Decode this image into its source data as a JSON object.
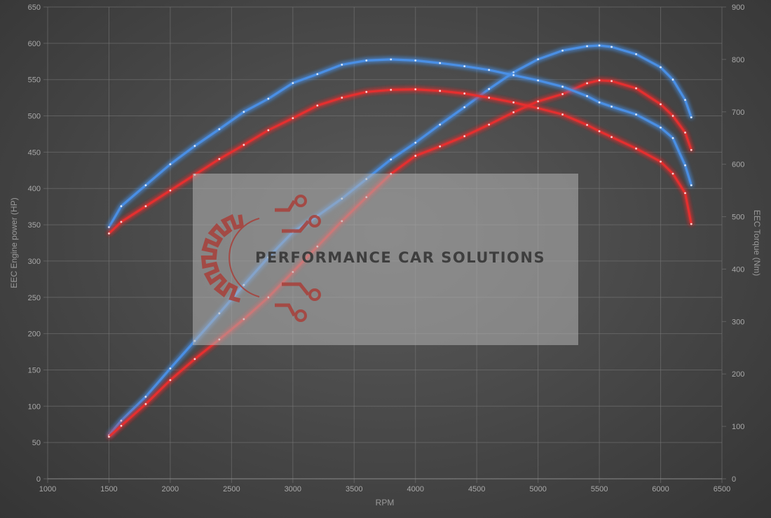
{
  "watermark": {
    "text": "PERFORMANCE CAR SOLUTIONS",
    "logo_icon": "gear-circuit-logo-icon",
    "logo_color": "#a8403a"
  },
  "chart_data": {
    "type": "line",
    "xlabel": "RPM",
    "ylabel": "EEC Engine power (HP)",
    "y2label": "EEC Torque (Nm)",
    "xlim": [
      1000,
      6500
    ],
    "ylim": [
      0,
      650
    ],
    "y2lim": [
      0,
      900
    ],
    "x_ticks": [
      "1000",
      "1500",
      "2000",
      "2500",
      "3000",
      "3500",
      "4000",
      "4500",
      "5000",
      "5500",
      "6000",
      "6500"
    ],
    "y_ticks": [
      "0",
      "50",
      "100",
      "150",
      "200",
      "250",
      "300",
      "350",
      "400",
      "450",
      "500",
      "550",
      "600",
      "650"
    ],
    "y2_ticks": [
      "0",
      "100",
      "200",
      "300",
      "400",
      "500",
      "600",
      "700",
      "800",
      "900"
    ],
    "grid": true,
    "series": [
      {
        "color": "#4a90e8",
        "axis": "left",
        "points": [
          [
            1500,
            60
          ],
          [
            1600,
            80
          ],
          [
            1800,
            113
          ],
          [
            2000,
            152
          ],
          [
            2200,
            190
          ],
          [
            2400,
            228
          ],
          [
            2600,
            267
          ],
          [
            2800,
            305
          ],
          [
            3000,
            340
          ],
          [
            3200,
            362
          ],
          [
            3400,
            386
          ],
          [
            3600,
            413
          ],
          [
            3800,
            440
          ],
          [
            4000,
            463
          ],
          [
            4200,
            488
          ],
          [
            4400,
            512
          ],
          [
            4600,
            537
          ],
          [
            4800,
            560
          ],
          [
            5000,
            578
          ],
          [
            5200,
            590
          ],
          [
            5400,
            596
          ],
          [
            5500,
            597
          ],
          [
            5600,
            595
          ],
          [
            5800,
            585
          ],
          [
            6000,
            567
          ],
          [
            6100,
            550
          ],
          [
            6200,
            522
          ],
          [
            6250,
            498
          ]
        ]
      },
      {
        "color": "#e83030",
        "axis": "left",
        "points": [
          [
            1500,
            58
          ],
          [
            1600,
            73
          ],
          [
            1800,
            103
          ],
          [
            2000,
            136
          ],
          [
            2200,
            165
          ],
          [
            2400,
            192
          ],
          [
            2600,
            220
          ],
          [
            2800,
            250
          ],
          [
            3000,
            285
          ],
          [
            3200,
            320
          ],
          [
            3400,
            355
          ],
          [
            3600,
            388
          ],
          [
            3800,
            420
          ],
          [
            4000,
            445
          ],
          [
            4200,
            458
          ],
          [
            4400,
            472
          ],
          [
            4600,
            488
          ],
          [
            4800,
            505
          ],
          [
            5000,
            520
          ],
          [
            5200,
            530
          ],
          [
            5400,
            545
          ],
          [
            5500,
            549
          ],
          [
            5600,
            548
          ],
          [
            5800,
            538
          ],
          [
            6000,
            516
          ],
          [
            6100,
            500
          ],
          [
            6200,
            477
          ],
          [
            6250,
            453
          ]
        ]
      },
      {
        "color": "#4a90e8",
        "axis": "right",
        "points": [
          [
            1500,
            480
          ],
          [
            1600,
            520
          ],
          [
            1800,
            560
          ],
          [
            2000,
            600
          ],
          [
            2200,
            635
          ],
          [
            2400,
            667
          ],
          [
            2600,
            700
          ],
          [
            2800,
            725
          ],
          [
            3000,
            755
          ],
          [
            3200,
            772
          ],
          [
            3400,
            790
          ],
          [
            3600,
            798
          ],
          [
            3800,
            800
          ],
          [
            4000,
            798
          ],
          [
            4200,
            793
          ],
          [
            4400,
            787
          ],
          [
            4600,
            780
          ],
          [
            4800,
            770
          ],
          [
            5000,
            760
          ],
          [
            5200,
            748
          ],
          [
            5400,
            730
          ],
          [
            5500,
            718
          ],
          [
            5600,
            710
          ],
          [
            5800,
            695
          ],
          [
            6000,
            670
          ],
          [
            6100,
            650
          ],
          [
            6200,
            598
          ],
          [
            6250,
            560
          ]
        ]
      },
      {
        "color": "#e83030",
        "axis": "right",
        "points": [
          [
            1500,
            468
          ],
          [
            1600,
            490
          ],
          [
            1800,
            520
          ],
          [
            2000,
            550
          ],
          [
            2200,
            580
          ],
          [
            2400,
            610
          ],
          [
            2600,
            637
          ],
          [
            2800,
            665
          ],
          [
            3000,
            688
          ],
          [
            3200,
            712
          ],
          [
            3400,
            727
          ],
          [
            3600,
            738
          ],
          [
            3800,
            742
          ],
          [
            4000,
            743
          ],
          [
            4200,
            740
          ],
          [
            4400,
            735
          ],
          [
            4600,
            727
          ],
          [
            4800,
            718
          ],
          [
            5000,
            707
          ],
          [
            5200,
            695
          ],
          [
            5400,
            675
          ],
          [
            5500,
            663
          ],
          [
            5600,
            652
          ],
          [
            5800,
            630
          ],
          [
            6000,
            605
          ],
          [
            6100,
            582
          ],
          [
            6200,
            545
          ],
          [
            6250,
            486
          ]
        ]
      }
    ]
  }
}
